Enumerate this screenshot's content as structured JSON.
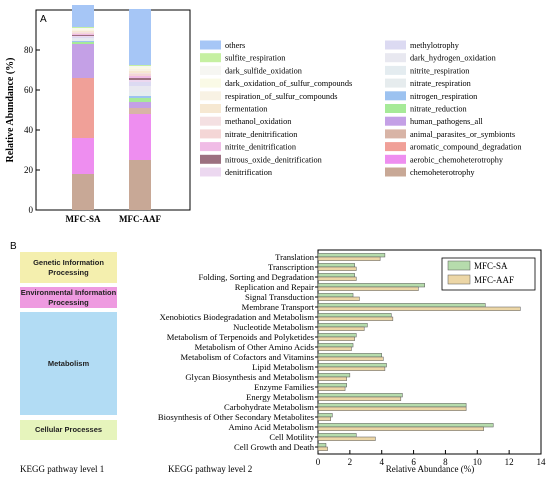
{
  "panel_a": {
    "letter": "A",
    "chart_data": {
      "type": "bar",
      "stacked": true,
      "ylabel": "Relative Abundance (%)",
      "ylim": [
        0,
        100
      ],
      "yticks": [
        0,
        20,
        40,
        60,
        80
      ],
      "categories": [
        "MFC-SA",
        "MFC-AAF"
      ],
      "legend_columns": [
        [
          "others",
          "sulfite_respiration",
          "dark_sulfide_oxidation",
          "dark_oxidation_of_sulfur_compounds",
          "respiration_of_sulfur_compounds",
          "fermentation",
          "methanol_oxidation",
          "nitrate_denitrification",
          "nitrite_denitrification",
          "nitrous_oxide_denitrification",
          "denitrification"
        ],
        [
          "methylotrophy",
          "dark_hydrogen_oxidation",
          "nitrite_respiration",
          "nitrate_respiration",
          "nitrogen_respiration",
          "nitrate_reduction",
          "human_pathogens_all",
          "animal_parasites_or_symbionts",
          "aromatic_compound_degradation",
          "aerobic_chemoheterotrophy",
          "chemoheterotrophy"
        ]
      ],
      "series": [
        {
          "name": "chemoheterotrophy",
          "color": "#c8a896",
          "values": [
            18,
            25
          ]
        },
        {
          "name": "aerobic_chemoheterotrophy",
          "color": "#ee8ef0",
          "values": [
            18,
            23
          ]
        },
        {
          "name": "aromatic_compound_degradation",
          "color": "#f0a098",
          "values": [
            30,
            0
          ]
        },
        {
          "name": "animal_parasites_or_symbionts",
          "color": "#d8b4a6",
          "values": [
            0,
            3
          ]
        },
        {
          "name": "human_pathogens_all",
          "color": "#c4a0e6",
          "values": [
            17,
            3
          ]
        },
        {
          "name": "nitrate_reduction",
          "color": "#a6ea98",
          "values": [
            1,
            2
          ]
        },
        {
          "name": "nitrogen_respiration",
          "color": "#9cc2f0",
          "values": [
            0.5,
            1
          ]
        },
        {
          "name": "nitrate_respiration",
          "color": "#e6ecee",
          "values": [
            0.5,
            1
          ]
        },
        {
          "name": "nitrite_respiration",
          "color": "#e4ecf0",
          "values": [
            0.5,
            1
          ]
        },
        {
          "name": "dark_hydrogen_oxidation",
          "color": "#e8e8f0",
          "values": [
            0.5,
            3
          ]
        },
        {
          "name": "methylotrophy",
          "color": "#dcdaf2",
          "values": [
            0.5,
            2
          ]
        },
        {
          "name": "denitrification",
          "color": "#ecd8f0",
          "values": [
            0.5,
            1
          ]
        },
        {
          "name": "nitrous_oxide_denitrification",
          "color": "#9c7080",
          "values": [
            0.5,
            1
          ]
        },
        {
          "name": "nitrite_denitrification",
          "color": "#f0bce6",
          "values": [
            0.5,
            1
          ]
        },
        {
          "name": "nitrate_denitrification",
          "color": "#f4d6d6",
          "values": [
            0.5,
            1
          ]
        },
        {
          "name": "methanol_oxidation",
          "color": "#f4e0e2",
          "values": [
            0.5,
            0.5
          ]
        },
        {
          "name": "fermentation",
          "color": "#f6e8d2",
          "values": [
            0.5,
            1
          ]
        },
        {
          "name": "respiration_of_sulfur_compounds",
          "color": "#f8f2e4",
          "values": [
            0.5,
            1
          ]
        },
        {
          "name": "dark_oxidation_of_sulfur_compounds",
          "color": "#fafae6",
          "values": [
            0.5,
            1
          ]
        },
        {
          "name": "dark_sulfide_oxidation",
          "color": "#f6f6f2",
          "values": [
            0.5,
            0.5
          ]
        },
        {
          "name": "sulfite_respiration",
          "color": "#c6f0a2",
          "values": [
            0.5,
            0.5
          ]
        },
        {
          "name": "others",
          "color": "#a6c6f6",
          "values": [
            11,
            28
          ]
        }
      ]
    }
  },
  "panel_b": {
    "letter": "B",
    "level1_label": "KEGG pathway level 1",
    "level2_label": "KEGG pathway level 2",
    "categories": [
      {
        "label": "Genetic Information Processing",
        "color": "#f4efae"
      },
      {
        "label": "Environmental Information Processing",
        "color": "#ee9ae0"
      },
      {
        "label": "Metabolism",
        "color": "#b2dcf4"
      },
      {
        "label": "Cellular Processes",
        "color": "#e6f4bc"
      }
    ],
    "chart_data": {
      "type": "bar",
      "orientation": "horizontal",
      "xlabel": "Relative Abundance (%)",
      "xlim": [
        0,
        14
      ],
      "xticks": [
        0,
        2,
        4,
        6,
        8,
        10,
        12,
        14
      ],
      "legend_position": "top-right",
      "categories": [
        "Translation",
        "Transcription",
        "Folding, Sorting and Degradation",
        "Replication and Repair",
        "Signal Transduction",
        "Membrane Transport",
        "Xenobiotics Biodegradation and Metabolism",
        "Nucleotide Metabolism",
        "Metabolism of Terpenoids and Polyketides",
        "Metabolism of Other Amino Acids",
        "Metabolism of Cofactors and Vitamins",
        "Lipid Metabolism",
        "Glycan Biosynthesis and Metabolism",
        "Enzyme Families",
        "Energy Metabolism",
        "Carbohydrate Metabolism",
        "Biosynthesis of Other Secondary Metabolites",
        "Amino Acid Metabolism",
        "Cell Motility",
        "Cell Growth and Death"
      ],
      "series": [
        {
          "name": "MFC-SA",
          "color": "#b6dcac",
          "values": [
            4.2,
            2.3,
            2.3,
            6.7,
            2.2,
            10.5,
            4.6,
            3.1,
            2.4,
            2.2,
            4.0,
            4.3,
            2.0,
            1.8,
            5.3,
            9.3,
            0.9,
            11.0,
            2.4,
            0.5
          ]
        },
        {
          "name": "MFC-AAF",
          "color": "#ecd6a6",
          "values": [
            3.9,
            2.4,
            2.4,
            6.3,
            2.6,
            12.7,
            4.7,
            2.9,
            2.3,
            2.1,
            4.1,
            4.2,
            1.8,
            1.7,
            5.2,
            9.3,
            0.8,
            10.4,
            3.6,
            0.6
          ]
        }
      ]
    }
  }
}
